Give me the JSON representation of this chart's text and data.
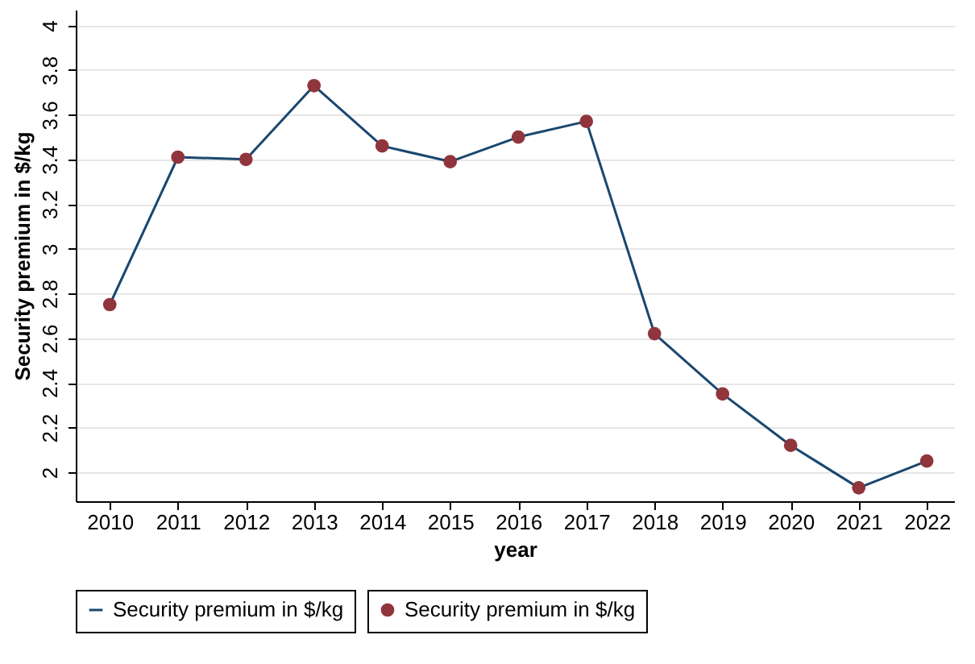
{
  "chart_data": {
    "type": "line",
    "xlabel": "year",
    "ylabel": "Security premium in $/kg",
    "x": [
      2010,
      2011,
      2012,
      2013,
      2014,
      2015,
      2016,
      2017,
      2018,
      2019,
      2020,
      2021,
      2022
    ],
    "series": [
      {
        "name": "Security premium in $/kg",
        "type": "line",
        "color": "#1a476f",
        "values": [
          2.75,
          3.41,
          3.4,
          3.73,
          3.46,
          3.39,
          3.5,
          3.57,
          2.62,
          2.35,
          2.12,
          1.93,
          2.05
        ]
      },
      {
        "name": "Security premium in $/kg",
        "type": "scatter",
        "marker": "circle",
        "color": "#90353b",
        "values": [
          2.75,
          3.41,
          3.4,
          3.73,
          3.46,
          3.39,
          3.5,
          3.57,
          2.62,
          2.35,
          2.12,
          1.93,
          2.05
        ]
      }
    ],
    "xlim": [
      2009.5,
      2022.4
    ],
    "xticks": [
      2010,
      2011,
      2012,
      2013,
      2014,
      2015,
      2016,
      2017,
      2018,
      2019,
      2020,
      2021,
      2022
    ],
    "ylim": [
      1.87,
      4.07
    ],
    "yticks": [
      2,
      2.2,
      2.4,
      2.6,
      2.8,
      3,
      3.2,
      3.4,
      3.6,
      3.8,
      4
    ],
    "grid": "y",
    "legend": "bottom",
    "line_style": "solid"
  }
}
